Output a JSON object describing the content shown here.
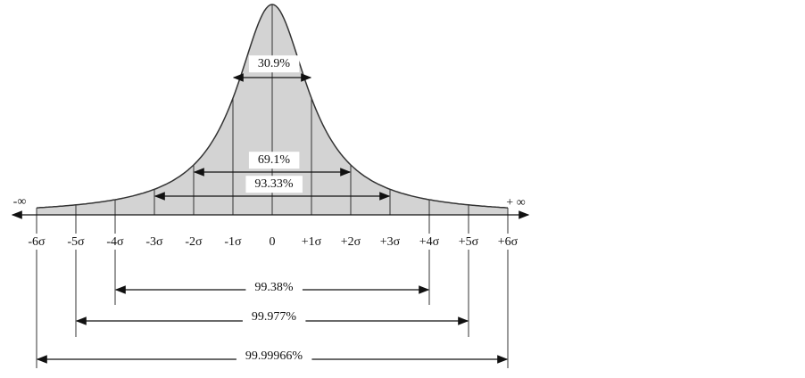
{
  "axis": {
    "neg_infinity": "-∞",
    "pos_infinity": "+ ∞",
    "sigma_labels": [
      "-6σ",
      "-5σ",
      "-4σ",
      "-3σ",
      "-2σ",
      "-1σ",
      "0",
      "+1σ",
      "+2σ",
      "+3σ",
      "+4σ",
      "+5σ",
      "+6σ"
    ]
  },
  "ranges": [
    {
      "label": "30.9%"
    },
    {
      "label": "69.1%"
    },
    {
      "label": "93.33%"
    },
    {
      "label": "99.38%"
    },
    {
      "label": "99.977%"
    },
    {
      "label": "99.99966%"
    }
  ]
}
